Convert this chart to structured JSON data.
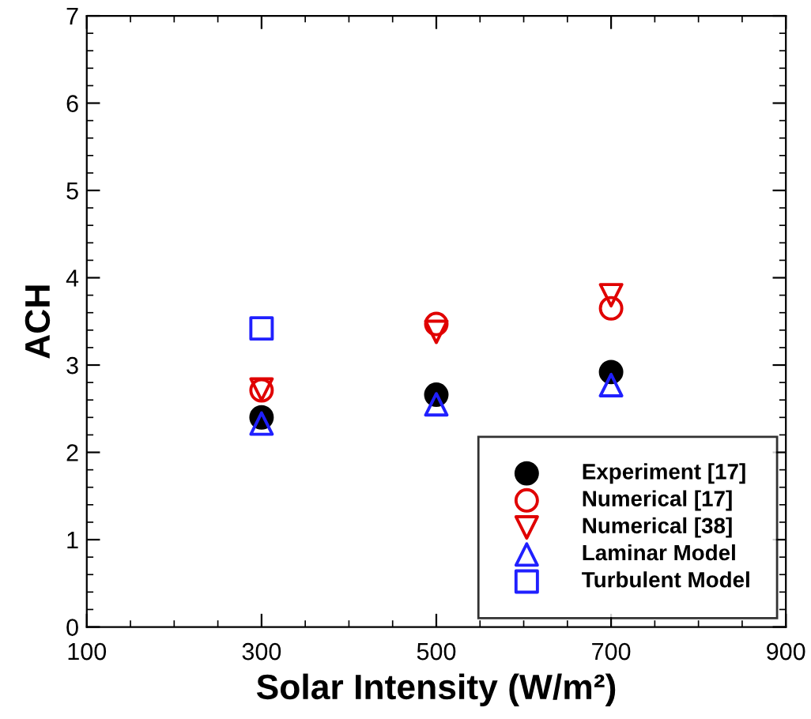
{
  "chart_data": {
    "type": "scatter",
    "xlabel": "Solar Intensity (W/m²)",
    "ylabel": "ACH",
    "xlim": [
      100,
      900
    ],
    "xticks": [
      100,
      300,
      500,
      700,
      900
    ],
    "ylim": [
      0,
      7
    ],
    "yticks": [
      0,
      1,
      2,
      3,
      4,
      5,
      6,
      7
    ],
    "grid": false,
    "legend": "bottom right",
    "series": [
      {
        "name": "Experiment [17]",
        "color": "#000000",
        "marker": "circle",
        "x": [
          300,
          500,
          700
        ],
        "values": [
          2.4,
          2.66,
          2.92
        ]
      },
      {
        "name": "Numerical [17]",
        "color": "#e00000",
        "marker": "circle",
        "x": [
          300,
          500,
          700
        ],
        "values": [
          2.71,
          3.47,
          3.65
        ]
      },
      {
        "name": "Numerical [38]",
        "color": "#e00000",
        "marker": "triangle_down",
        "x": [
          300,
          500,
          700
        ],
        "values": [
          2.72,
          3.38,
          3.8
        ]
      },
      {
        "name": "Laminar Model",
        "color": "#2020ff",
        "marker": "triangle",
        "x": [
          300,
          500,
          700
        ],
        "values": [
          2.33,
          2.55,
          2.77
        ]
      },
      {
        "name": "Turbulent Model",
        "color": "#2020ff",
        "marker": "square",
        "x": [
          300
        ],
        "values": [
          3.42
        ]
      }
    ]
  }
}
